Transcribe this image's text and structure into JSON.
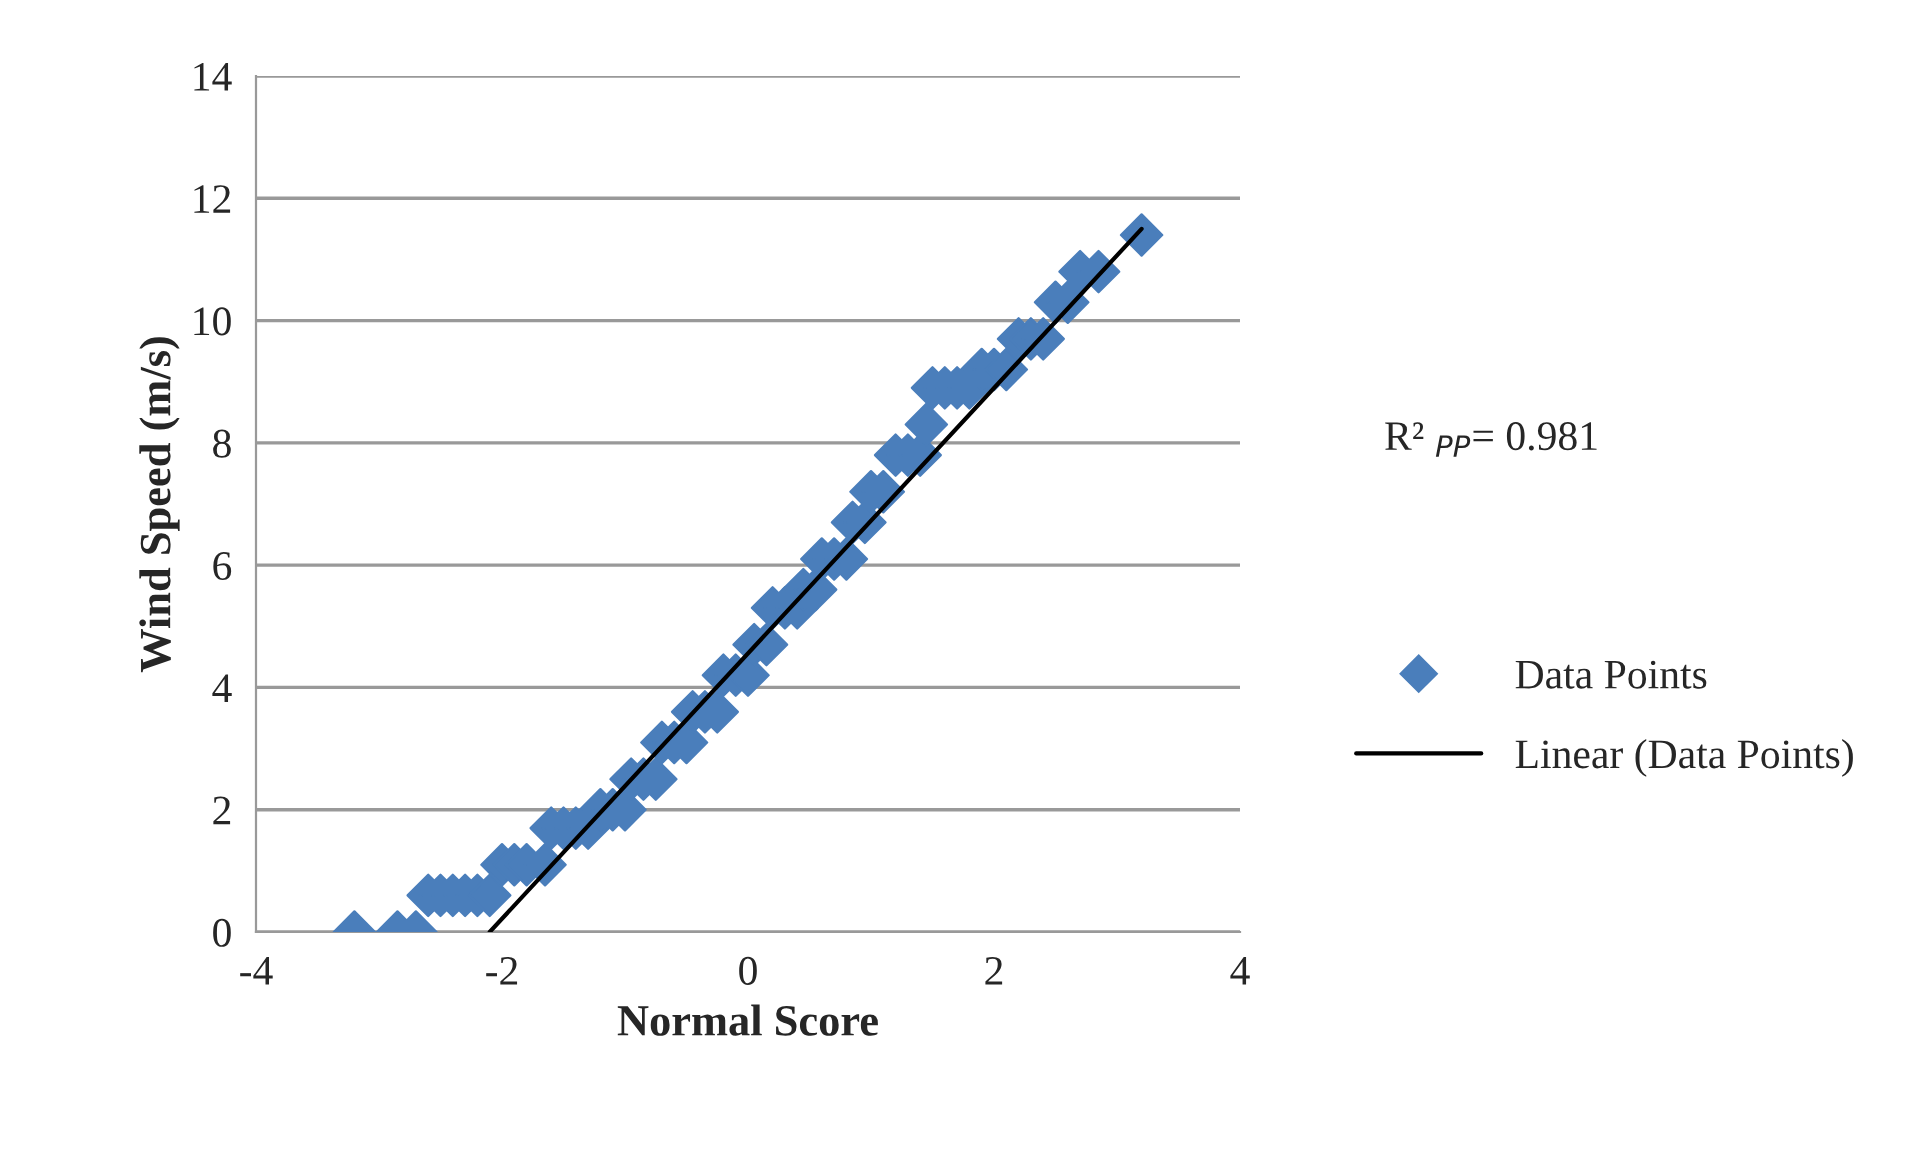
{
  "chart_data": {
    "type": "scatter",
    "xlabel": "Normal Score",
    "ylabel": "Wind Speed (m/s)",
    "xlim": [
      -4,
      4
    ],
    "xticks": [
      -4,
      -2,
      0,
      2,
      4
    ],
    "ylim": [
      0,
      14
    ],
    "yticks": [
      0,
      2,
      4,
      6,
      8,
      10,
      12,
      14
    ],
    "grid": "y",
    "legend": "right",
    "marker": "diamond",
    "annotations": [
      "R² $_{PP}$= 0.981"
    ],
    "series": [
      {
        "name": "Data Points",
        "color": "#4a7ebb",
        "x": [
          -3.2,
          -2.85,
          -2.7,
          -2.6,
          -2.5,
          -2.4,
          -2.3,
          -2.2,
          -2.1,
          -2.0,
          -1.9,
          -1.8,
          -1.65,
          -1.6,
          -1.5,
          -1.4,
          -1.3,
          -1.2,
          -1.1,
          -1.0,
          -0.95,
          -0.85,
          -0.75,
          -0.7,
          -0.6,
          -0.5,
          -0.45,
          -0.35,
          -0.25,
          -0.2,
          -0.1,
          0.0,
          0.05,
          0.15,
          0.2,
          0.3,
          0.4,
          0.45,
          0.55,
          0.6,
          0.7,
          0.8,
          0.85,
          0.95,
          1.0,
          1.1,
          1.2,
          1.3,
          1.4,
          1.45,
          1.5,
          1.6,
          1.7,
          1.8,
          1.9,
          2.0,
          2.1,
          2.2,
          2.3,
          2.4,
          2.5,
          2.6,
          2.7,
          2.85,
          3.2
        ],
        "values": [
          0,
          0,
          0,
          0.6,
          0.6,
          0.6,
          0.6,
          0.6,
          0.6,
          1.1,
          1.1,
          1.1,
          1.1,
          1.7,
          1.7,
          1.7,
          1.7,
          2.0,
          2.0,
          2.0,
          2.5,
          2.5,
          2.5,
          3.1,
          3.1,
          3.1,
          3.6,
          3.6,
          3.6,
          4.2,
          4.2,
          4.2,
          4.7,
          4.7,
          5.3,
          5.3,
          5.3,
          5.6,
          5.6,
          6.1,
          6.1,
          6.1,
          6.7,
          6.7,
          7.2,
          7.2,
          7.8,
          7.8,
          7.8,
          8.3,
          8.9,
          8.9,
          8.9,
          8.9,
          9.2,
          9.2,
          9.2,
          9.7,
          9.7,
          9.7,
          10.3,
          10.3,
          10.8,
          10.8,
          11.4
        ]
      },
      {
        "name": "Linear (Data Points)",
        "type": "line",
        "color": "#000000",
        "marker": "none",
        "x": [
          -2.1,
          3.2
        ],
        "values": [
          0,
          11.5
        ]
      }
    ]
  }
}
